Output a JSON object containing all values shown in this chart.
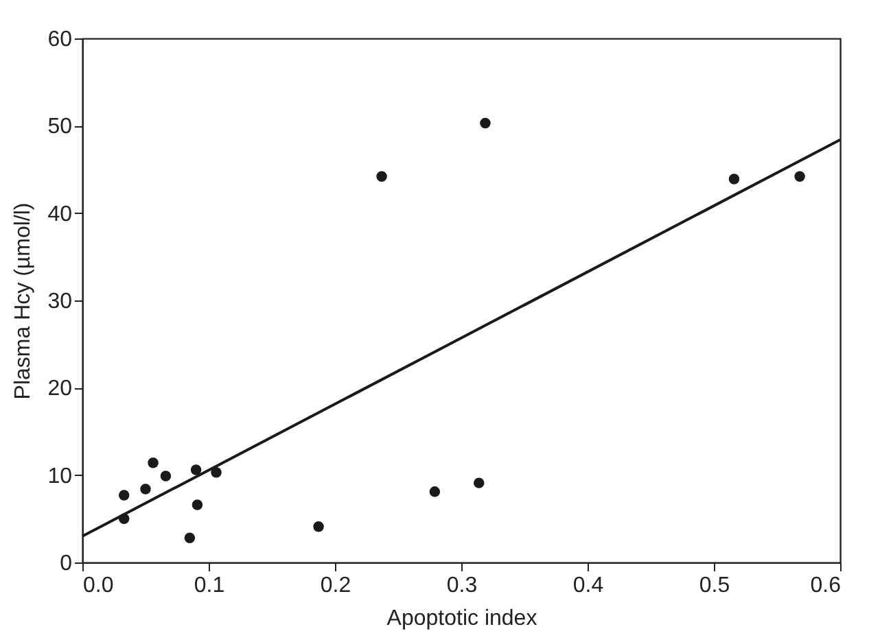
{
  "chart_data": {
    "type": "scatter",
    "xlabel": "Apoptotic index",
    "ylabel": "Plasma Hcy (µmol/l)",
    "xlim": [
      0,
      0.6
    ],
    "ylim": [
      0,
      60
    ],
    "xticks": [
      {
        "value": 0,
        "label": "0.0"
      },
      0.1,
      0.2,
      0.3,
      0.4,
      0.5,
      0.6
    ],
    "yticks": [
      0,
      10,
      20,
      30,
      40,
      50,
      60
    ],
    "grid": false,
    "series": [
      {
        "color": "#1a1a1a",
        "marker": "circle",
        "x": [
          0.033,
          0.033,
          0.05,
          0.056,
          0.066,
          0.085,
          0.09,
          0.091,
          0.106,
          0.187,
          0.237,
          0.279,
          0.314,
          0.319,
          0.516,
          0.568
        ],
        "values": [
          7.7,
          5.0,
          8.4,
          11.4,
          9.9,
          2.8,
          10.6,
          6.6,
          10.3,
          4.1,
          44.2,
          8.1,
          9.1,
          50.3,
          43.9,
          44.2
        ]
      },
      {
        "type": "line",
        "color": "#1a1a1a",
        "x": [
          0,
          0.6
        ],
        "values": [
          3.0,
          48.4
        ],
        "line_style": "solid",
        "marker": "none"
      }
    ]
  }
}
